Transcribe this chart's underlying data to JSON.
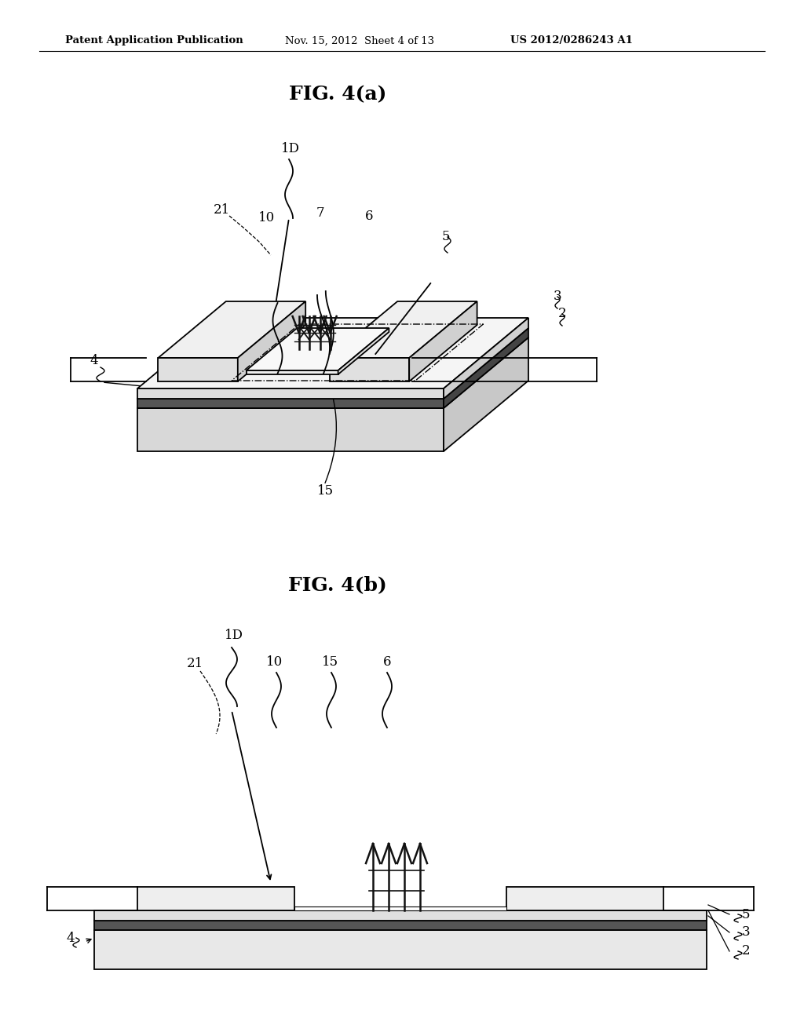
{
  "bg_color": "#ffffff",
  "header_text": "Patent Application Publication",
  "header_date": "Nov. 15, 2012  Sheet 4 of 13",
  "header_patent": "US 2012/0286243 A1",
  "fig_a_title": "FIG. 4(a)",
  "fig_b_title": "FIG. 4(b)",
  "lc": "#000000",
  "gray_light": "#e8e8e8",
  "gray_mid": "#cccccc",
  "gray_dark": "#888888",
  "gray_vdark": "#444444"
}
